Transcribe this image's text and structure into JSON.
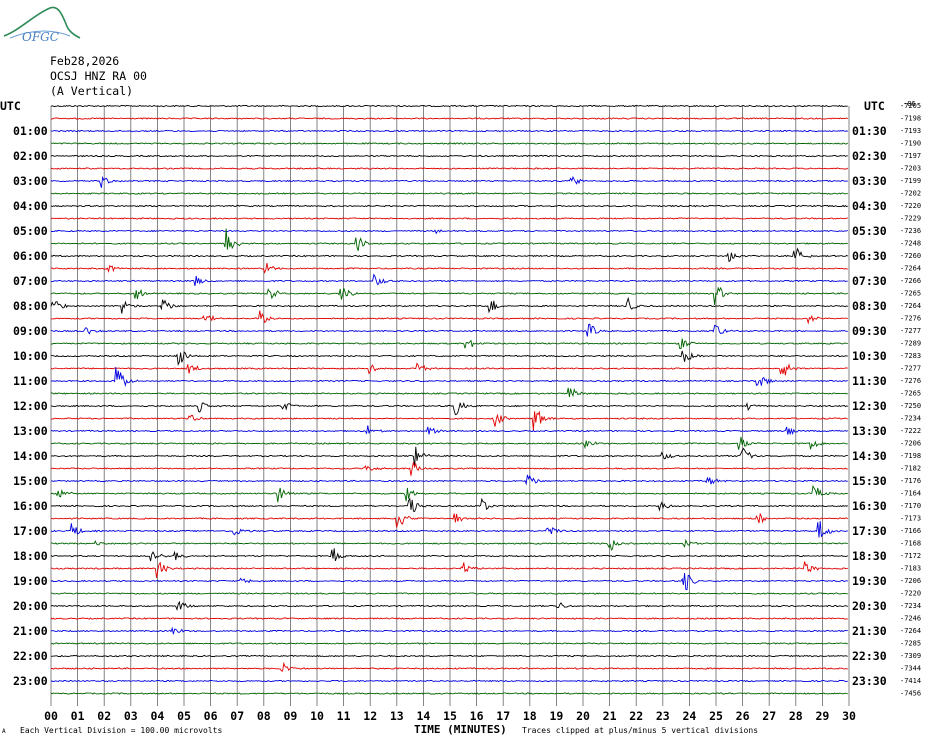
{
  "logo": {
    "text": "OFGC"
  },
  "header": {
    "date": "Feb28,2026",
    "station": "OCSJ HNZ RA 00",
    "component": "(A Vertical)"
  },
  "chart_data": {
    "type": "line",
    "title": "Feb28,2026 OCSJ HNZ RA 00 (A Vertical)",
    "left_axis_label": "UTC",
    "right_axis_label": "UTC",
    "left_hour_labels": [
      "01:00",
      "02:00",
      "03:00",
      "04:00",
      "05:00",
      "06:00",
      "07:00",
      "08:00",
      "09:00",
      "10:00",
      "11:00",
      "12:00",
      "13:00",
      "14:00",
      "15:00",
      "16:00",
      "17:00",
      "18:00",
      "19:00",
      "20:00",
      "21:00",
      "22:00",
      "23:00"
    ],
    "right_hour_labels": [
      "01:30",
      "02:30",
      "03:30",
      "04:30",
      "05:30",
      "06:30",
      "07:30",
      "08:30",
      "09:30",
      "10:30",
      "11:30",
      "12:30",
      "13:30",
      "14:30",
      "15:30",
      "16:30",
      "17:30",
      "18:30",
      "19:30",
      "20:30",
      "21:30",
      "22:30",
      "23:30"
    ],
    "right_offsets": [
      "-7205",
      "-7198",
      "-7193",
      "-7190",
      "-7197",
      "-7203",
      "-7199",
      "-7202",
      "-7220",
      "-7229",
      "-7236",
      "-7248",
      "-7260",
      "-7264",
      "-7266",
      "-7265",
      "-7264",
      "-7276",
      "-7277",
      "-7289",
      "-7283",
      "-7277",
      "-7276",
      "-7265",
      "-7250",
      "-7234",
      "-7222",
      "-7206",
      "-7198",
      "-7182",
      "-7176",
      "-7164",
      "-7170",
      "-7173",
      "-7166",
      "-7168",
      "-7172",
      "-7183",
      "-7206",
      "-7220",
      "-7234",
      "-7246",
      "-7264",
      "-7285",
      "-7309",
      "-7344",
      "-7414",
      "-7456"
    ],
    "top_right_mark": "-86",
    "x_ticks": [
      "00",
      "01",
      "02",
      "03",
      "04",
      "05",
      "06",
      "07",
      "08",
      "09",
      "10",
      "11",
      "12",
      "13",
      "14",
      "15",
      "16",
      "17",
      "18",
      "19",
      "20",
      "21",
      "22",
      "23",
      "24",
      "25",
      "26",
      "27",
      "28",
      "29",
      "30"
    ],
    "xlabel": "TIME (MINUTES)",
    "xlim": [
      0,
      30
    ],
    "trace_count": 48,
    "trace_colors": [
      "#000000",
      "#e00000",
      "#0000e0",
      "#006400"
    ],
    "grid": true,
    "events": [
      {
        "trace": 6,
        "minute": 1.9,
        "amp": 7
      },
      {
        "trace": 6,
        "minute": 19.6,
        "amp": 7
      },
      {
        "trace": 10,
        "minute": 14.5,
        "amp": 3
      },
      {
        "trace": 11,
        "minute": 6.6,
        "amp": 18
      },
      {
        "trace": 11,
        "minute": 11.5,
        "amp": 10
      },
      {
        "trace": 12,
        "minute": 25.5,
        "amp": 7
      },
      {
        "trace": 12,
        "minute": 28.0,
        "amp": 10
      },
      {
        "trace": 13,
        "minute": 2.2,
        "amp": 4
      },
      {
        "trace": 13,
        "minute": 8.1,
        "amp": 6
      },
      {
        "trace": 14,
        "minute": 5.4,
        "amp": 7
      },
      {
        "trace": 14,
        "minute": 12.2,
        "amp": 9
      },
      {
        "trace": 15,
        "minute": 3.2,
        "amp": 7
      },
      {
        "trace": 15,
        "minute": 8.2,
        "amp": 10
      },
      {
        "trace": 15,
        "minute": 10.9,
        "amp": 10
      },
      {
        "trace": 15,
        "minute": 25.0,
        "amp": 12
      },
      {
        "trace": 16,
        "minute": 0.1,
        "amp": 9
      },
      {
        "trace": 16,
        "minute": 2.7,
        "amp": 8
      },
      {
        "trace": 16,
        "minute": 4.2,
        "amp": 8
      },
      {
        "trace": 16,
        "minute": 16.5,
        "amp": 10
      },
      {
        "trace": 16,
        "minute": 21.7,
        "amp": 10
      },
      {
        "trace": 17,
        "minute": 5.8,
        "amp": 6
      },
      {
        "trace": 17,
        "minute": 7.9,
        "amp": 8
      },
      {
        "trace": 17,
        "minute": 28.5,
        "amp": 5
      },
      {
        "trace": 18,
        "minute": 1.3,
        "amp": 5
      },
      {
        "trace": 18,
        "minute": 20.2,
        "amp": 9
      },
      {
        "trace": 18,
        "minute": 25.0,
        "amp": 7
      },
      {
        "trace": 19,
        "minute": 15.6,
        "amp": 9
      },
      {
        "trace": 19,
        "minute": 23.7,
        "amp": 7
      },
      {
        "trace": 20,
        "minute": 4.8,
        "amp": 12
      },
      {
        "trace": 20,
        "minute": 23.8,
        "amp": 10
      },
      {
        "trace": 21,
        "minute": 5.2,
        "amp": 7
      },
      {
        "trace": 21,
        "minute": 12.0,
        "amp": 6
      },
      {
        "trace": 21,
        "minute": 13.8,
        "amp": 7
      },
      {
        "trace": 21,
        "minute": 27.5,
        "amp": 12
      },
      {
        "trace": 22,
        "minute": 2.5,
        "amp": 16
      },
      {
        "trace": 22,
        "minute": 26.6,
        "amp": 10
      },
      {
        "trace": 23,
        "minute": 19.5,
        "amp": 8
      },
      {
        "trace": 24,
        "minute": 5.6,
        "amp": 6
      },
      {
        "trace": 24,
        "minute": 8.7,
        "amp": 7
      },
      {
        "trace": 24,
        "minute": 15.2,
        "amp": 12
      },
      {
        "trace": 24,
        "minute": 26.2,
        "amp": 5
      },
      {
        "trace": 25,
        "minute": 5.2,
        "amp": 5
      },
      {
        "trace": 25,
        "minute": 16.7,
        "amp": 8
      },
      {
        "trace": 25,
        "minute": 18.2,
        "amp": 14
      },
      {
        "trace": 26,
        "minute": 11.9,
        "amp": 6
      },
      {
        "trace": 26,
        "minute": 14.2,
        "amp": 6
      },
      {
        "trace": 26,
        "minute": 27.7,
        "amp": 8
      },
      {
        "trace": 27,
        "minute": 20.1,
        "amp": 6
      },
      {
        "trace": 27,
        "minute": 25.9,
        "amp": 8
      },
      {
        "trace": 27,
        "minute": 28.6,
        "amp": 6
      },
      {
        "trace": 28,
        "minute": 13.7,
        "amp": 12
      },
      {
        "trace": 28,
        "minute": 23.0,
        "amp": 7
      },
      {
        "trace": 28,
        "minute": 26.0,
        "amp": 12
      },
      {
        "trace": 29,
        "minute": 11.8,
        "amp": 7
      },
      {
        "trace": 29,
        "minute": 13.6,
        "amp": 8
      },
      {
        "trace": 30,
        "minute": 17.9,
        "amp": 8
      },
      {
        "trace": 30,
        "minute": 24.7,
        "amp": 6
      },
      {
        "trace": 31,
        "minute": 0.3,
        "amp": 6
      },
      {
        "trace": 31,
        "minute": 8.6,
        "amp": 9
      },
      {
        "trace": 31,
        "minute": 13.3,
        "amp": 10
      },
      {
        "trace": 31,
        "minute": 28.7,
        "amp": 9
      },
      {
        "trace": 32,
        "minute": 13.5,
        "amp": 12
      },
      {
        "trace": 32,
        "minute": 16.2,
        "amp": 8
      },
      {
        "trace": 32,
        "minute": 22.9,
        "amp": 6
      },
      {
        "trace": 33,
        "minute": 13.0,
        "amp": 14
      },
      {
        "trace": 33,
        "minute": 15.2,
        "amp": 6
      },
      {
        "trace": 33,
        "minute": 26.6,
        "amp": 6
      },
      {
        "trace": 34,
        "minute": 0.8,
        "amp": 10
      },
      {
        "trace": 34,
        "minute": 6.9,
        "amp": 6
      },
      {
        "trace": 34,
        "minute": 18.7,
        "amp": 6
      },
      {
        "trace": 34,
        "minute": 28.9,
        "amp": 12
      },
      {
        "trace": 35,
        "minute": 1.7,
        "amp": 5
      },
      {
        "trace": 35,
        "minute": 21.0,
        "amp": 10
      },
      {
        "trace": 35,
        "minute": 23.8,
        "amp": 6
      },
      {
        "trace": 36,
        "minute": 3.8,
        "amp": 7
      },
      {
        "trace": 36,
        "minute": 4.7,
        "amp": 6
      },
      {
        "trace": 36,
        "minute": 10.6,
        "amp": 9
      },
      {
        "trace": 37,
        "minute": 4.0,
        "amp": 12
      },
      {
        "trace": 37,
        "minute": 15.5,
        "amp": 8
      },
      {
        "trace": 37,
        "minute": 28.4,
        "amp": 7
      },
      {
        "trace": 38,
        "minute": 7.2,
        "amp": 5
      },
      {
        "trace": 38,
        "minute": 23.8,
        "amp": 14
      },
      {
        "trace": 40,
        "minute": 4.8,
        "amp": 6
      },
      {
        "trace": 40,
        "minute": 19.1,
        "amp": 5
      },
      {
        "trace": 42,
        "minute": 4.6,
        "amp": 5
      },
      {
        "trace": 45,
        "minute": 8.7,
        "amp": 7
      }
    ]
  },
  "footer": {
    "scale_note": "Each Vertical Division =  100.00 microvolts",
    "clip_note": "Traces clipped at plus/minus 5 vertical divisions"
  }
}
